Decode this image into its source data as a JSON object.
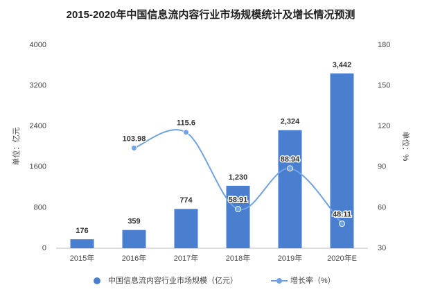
{
  "chart_data": {
    "type": "combo",
    "title": "2015-2020年中国信息流内容行业市场规模统计及增长情况预测",
    "categories": [
      "2015年",
      "2016年",
      "2017年",
      "2018年",
      "2019年",
      "2020年E"
    ],
    "ylabel": "单位：亿元",
    "y2label": "单位：%",
    "ylim": [
      0,
      4000
    ],
    "yticks": [
      0,
      800,
      1600,
      2400,
      3200,
      4000
    ],
    "y2lim": [
      30,
      180
    ],
    "y2ticks": [
      30,
      60,
      90,
      120,
      150,
      180
    ],
    "legend": "bottom",
    "series": [
      {
        "name": "中国信息流内容行业市场规模（亿元）",
        "type": "bar",
        "color": "#4a7fd0",
        "values": [
          176,
          359,
          774,
          1230,
          2324,
          3442
        ],
        "value_labels": [
          "176",
          "359",
          "774",
          "1,230",
          "2,324",
          "3,442"
        ]
      },
      {
        "name": "增长率（%）",
        "type": "line",
        "axis": "y2",
        "color": "#6fa3e6",
        "values": [
          null,
          103.98,
          115.6,
          58.91,
          88.94,
          48.11
        ]
      }
    ]
  }
}
